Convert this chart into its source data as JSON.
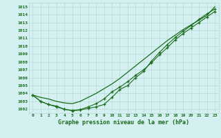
{
  "x": [
    0,
    1,
    2,
    3,
    4,
    5,
    6,
    7,
    8,
    9,
    10,
    11,
    12,
    13,
    14,
    15,
    16,
    17,
    18,
    19,
    20,
    21,
    22,
    23
  ],
  "line_smooth": [
    1003.8,
    1003.5,
    1003.3,
    1003.0,
    1002.8,
    1002.7,
    1003.0,
    1003.5,
    1004.0,
    1004.6,
    1005.2,
    1005.9,
    1006.7,
    1007.5,
    1008.3,
    1009.1,
    1009.9,
    1010.7,
    1011.4,
    1012.1,
    1012.7,
    1013.3,
    1013.9,
    1015.0
  ],
  "line_data1": [
    1003.8,
    1003.0,
    1002.6,
    1002.3,
    1002.0,
    1001.8,
    1001.9,
    1002.1,
    1002.3,
    1002.6,
    1003.5,
    1004.5,
    1005.0,
    1006.0,
    1006.8,
    1008.1,
    1009.2,
    1010.2,
    1011.1,
    1011.9,
    1012.6,
    1013.4,
    1014.1,
    1014.7
  ],
  "line_data2": [
    1003.8,
    1003.0,
    1002.6,
    1002.4,
    1002.0,
    1001.85,
    1001.95,
    1002.3,
    1002.7,
    1003.3,
    1004.2,
    1004.8,
    1005.5,
    1006.3,
    1007.0,
    1007.9,
    1008.9,
    1009.8,
    1010.8,
    1011.6,
    1012.3,
    1013.0,
    1013.7,
    1014.4
  ],
  "line_color": "#1a6b1a",
  "bg_color": "#d4f0f0",
  "grid_color": "#b8d8d8",
  "xlabel": "Graphe pression niveau de la mer (hPa)",
  "ylim": [
    1001.5,
    1015.5
  ],
  "xlim": [
    -0.5,
    23.5
  ],
  "yticks": [
    1002,
    1003,
    1004,
    1005,
    1006,
    1007,
    1008,
    1009,
    1010,
    1011,
    1012,
    1013,
    1014,
    1015
  ],
  "xticks": [
    0,
    1,
    2,
    3,
    4,
    5,
    6,
    7,
    8,
    9,
    10,
    11,
    12,
    13,
    14,
    15,
    16,
    17,
    18,
    19,
    20,
    21,
    22,
    23
  ]
}
